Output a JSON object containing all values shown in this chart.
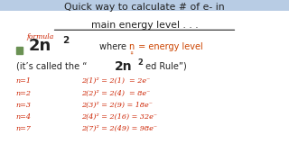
{
  "bg_color": "#ffffff",
  "top_bar_color": "#b8cce4",
  "title_line1": "Quick way to calculate # of e- in",
  "title_line2": "main energy level . . .",
  "formula_label": "formula",
  "formula_n": "n",
  "formula_rest": " = energy level",
  "rule_text_pre": "(it’s called the “",
  "rule_text_formula": "2n",
  "rule_text_sup": "2",
  "rule_text_post": " ed Rule”)",
  "hw_n": [
    "n=1",
    "n=2",
    "n=3",
    "n=4",
    "n=7"
  ],
  "hw_calc": [
    "2(1)² = 2(1)  = 2e⁻",
    "2(2)² = 2(4)  = 8e⁻",
    "2(3)² = 2(9) = 18e⁻",
    "2(4)² = 2(16) = 32e⁻",
    "2(7)² = 2(49) = 98e⁻"
  ],
  "text_color_black": "#222222",
  "text_color_orange": "#cc4400",
  "text_color_red": "#cc2200",
  "square_color": "#6a9153",
  "underline_color": "#222222",
  "title_fs": 7.8,
  "body_fs": 7.0,
  "formula_fs": 13.0,
  "formula_sup_fs": 7.5,
  "rule_formula_fs": 10.0,
  "hw_fs": 5.8
}
